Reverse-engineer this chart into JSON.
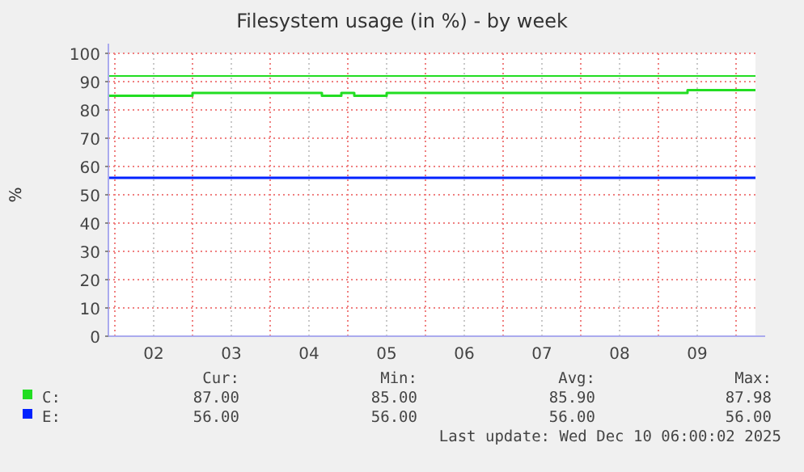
{
  "chart_data": {
    "type": "step",
    "title": "Filesystem usage (in %) - by week",
    "ylabel": "%",
    "xlim": [
      "2025-12-01T22:00",
      "2025-12-10T06:00"
    ],
    "xticks": [
      {
        "value": "2025-12-02T00:00",
        "label": null
      },
      {
        "value": "2025-12-02T12:00",
        "label": "02"
      },
      {
        "value": "2025-12-03T00:00",
        "label": null
      },
      {
        "value": "2025-12-03T12:00",
        "label": "03"
      },
      {
        "value": "2025-12-04T00:00",
        "label": null
      },
      {
        "value": "2025-12-04T12:00",
        "label": "04"
      },
      {
        "value": "2025-12-05T00:00",
        "label": null
      },
      {
        "value": "2025-12-05T12:00",
        "label": "05"
      },
      {
        "value": "2025-12-06T00:00",
        "label": null
      },
      {
        "value": "2025-12-06T12:00",
        "label": "06"
      },
      {
        "value": "2025-12-07T00:00",
        "label": null
      },
      {
        "value": "2025-12-07T12:00",
        "label": "07"
      },
      {
        "value": "2025-12-08T00:00",
        "label": null
      },
      {
        "value": "2025-12-08T12:00",
        "label": "08"
      },
      {
        "value": "2025-12-09T00:00",
        "label": null
      },
      {
        "value": "2025-12-09T12:00",
        "label": "09"
      },
      {
        "value": "2025-12-10T00:00",
        "label": null
      }
    ],
    "ylim": [
      0,
      100
    ],
    "yticks": [
      0,
      10,
      20,
      30,
      40,
      50,
      60,
      70,
      80,
      90,
      100
    ],
    "grid": true,
    "legend": "bottom",
    "series": [
      {
        "name": "C:",
        "color": "#22dd22",
        "x": [
          "2025-12-01T22:00",
          "2025-12-03T00:00",
          "2025-12-04T16:00",
          "2025-12-04T22:00",
          "2025-12-05T02:00",
          "2025-12-05T12:00",
          "2025-12-09T09:00",
          "2025-12-10T06:00"
        ],
        "values": [
          85,
          86,
          85,
          86,
          85,
          86,
          87,
          87
        ]
      },
      {
        "name": "E:",
        "color": "#0022ff",
        "x": [
          "2025-12-01T22:00",
          "2025-12-10T06:00"
        ],
        "values": [
          56,
          56
        ]
      }
    ],
    "ref_lines": [
      {
        "axis": "y",
        "value": 92,
        "label": null,
        "color": "#22dd22"
      }
    ],
    "annotations": [
      "Cur:",
      "Min:",
      "Avg:",
      "Max:",
      "87.00",
      "85.00",
      "85.90",
      "87.98",
      "56.00",
      "56.00",
      "56.00",
      "56.00",
      "Last update: Wed Dec 10 06:00:02 2025"
    ]
  }
}
